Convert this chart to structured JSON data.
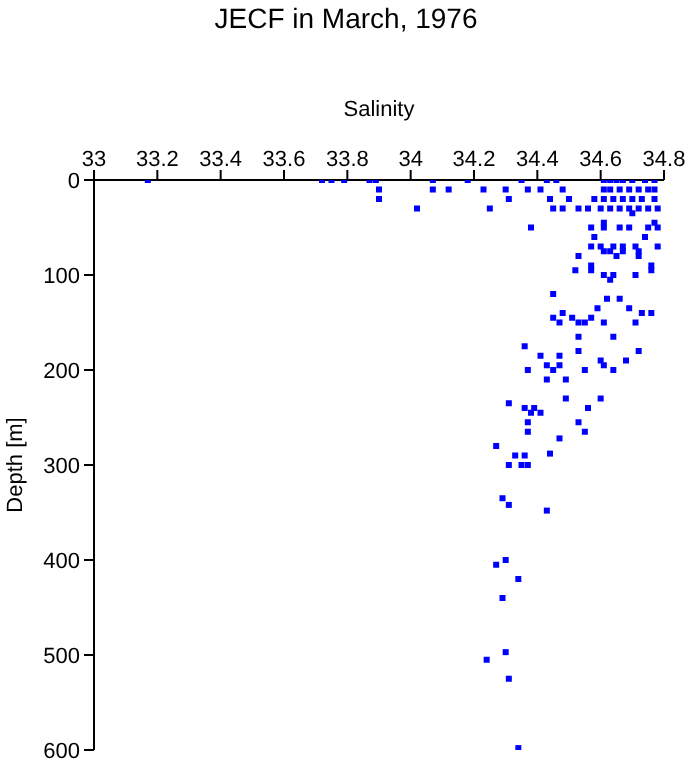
{
  "chart_data": {
    "type": "scatter",
    "title": "JECF in March, 1976",
    "xlabel": "Salinity",
    "ylabel": "Depth [m]",
    "xlim": [
      33,
      34.8
    ],
    "xticks": [
      33,
      33.2,
      33.4,
      33.6,
      33.8,
      34,
      34.2,
      34.4,
      34.6,
      34.8
    ],
    "ylim": [
      600,
      0
    ],
    "yticks": [
      0,
      100,
      200,
      300,
      400,
      500,
      600
    ],
    "grid": false,
    "legend": false,
    "marker": "square",
    "series": [
      {
        "color": "#0000ff",
        "x": [
          33.17,
          33.72,
          33.75,
          33.79,
          33.87,
          33.89,
          34.07,
          34.18,
          34.35,
          34.43,
          34.46,
          34.61,
          34.63,
          34.65,
          34.67,
          34.7,
          34.74,
          34.77,
          33.9,
          34.07,
          34.12,
          34.23,
          34.3,
          34.37,
          34.41,
          34.48,
          34.61,
          34.63,
          34.66,
          34.69,
          34.72,
          34.75,
          34.77,
          33.9,
          34.31,
          34.44,
          34.5,
          34.58,
          34.61,
          34.64,
          34.67,
          34.7,
          34.73,
          34.77,
          34.02,
          34.25,
          34.45,
          34.48,
          34.53,
          34.56,
          34.6,
          34.63,
          34.66,
          34.69,
          34.72,
          34.75,
          34.78,
          34.7,
          34.61,
          34.77,
          34.38,
          34.57,
          34.61,
          34.66,
          34.69,
          34.75,
          34.78,
          34.58,
          34.74,
          34.57,
          34.6,
          34.64,
          34.67,
          34.71,
          34.78,
          34.61,
          34.63,
          34.67,
          34.72,
          34.53,
          34.65,
          34.72,
          34.57,
          34.76,
          34.52,
          34.57,
          34.76,
          34.61,
          34.64,
          34.71,
          34.63,
          34.45,
          34.62,
          34.66,
          34.59,
          34.69,
          34.48,
          34.73,
          34.76,
          34.45,
          34.51,
          34.57,
          34.47,
          34.53,
          34.55,
          34.61,
          34.71,
          34.53,
          34.64,
          34.36,
          34.53,
          34.72,
          34.41,
          34.47,
          34.6,
          34.68,
          34.43,
          34.47,
          34.61,
          34.37,
          34.45,
          34.55,
          34.64,
          34.43,
          34.49,
          34.49,
          34.6,
          34.31,
          34.36,
          34.39,
          34.56,
          34.41,
          34.38,
          34.37,
          34.53,
          34.37,
          34.55,
          34.47,
          34.27,
          34.44,
          34.33,
          34.36,
          34.31,
          34.35,
          34.37,
          34.29,
          34.31,
          34.43,
          34.3,
          34.27,
          34.34,
          34.29,
          34.3,
          34.24,
          34.31,
          34.34
        ],
        "values": [
          0,
          0,
          0,
          0,
          0,
          0,
          0,
          0,
          0,
          0,
          0,
          0,
          0,
          0,
          0,
          0,
          0,
          0,
          10,
          10,
          10,
          10,
          10,
          10,
          10,
          10,
          10,
          10,
          10,
          10,
          10,
          10,
          10,
          20,
          20,
          20,
          20,
          20,
          20,
          20,
          20,
          20,
          20,
          20,
          30,
          30,
          30,
          30,
          30,
          30,
          30,
          30,
          30,
          30,
          30,
          30,
          30,
          35,
          45,
          45,
          50,
          50,
          50,
          50,
          50,
          50,
          50,
          60,
          60,
          70,
          70,
          70,
          70,
          70,
          70,
          75,
          75,
          75,
          75,
          80,
          80,
          80,
          90,
          90,
          95,
          95,
          95,
          100,
          100,
          100,
          105,
          120,
          125,
          125,
          135,
          135,
          140,
          140,
          140,
          145,
          145,
          145,
          150,
          150,
          150,
          150,
          150,
          165,
          165,
          175,
          180,
          180,
          185,
          185,
          190,
          190,
          195,
          195,
          195,
          200,
          200,
          200,
          200,
          210,
          210,
          230,
          230,
          235,
          240,
          240,
          240,
          245,
          245,
          255,
          255,
          265,
          265,
          272,
          280,
          288,
          290,
          290,
          300,
          300,
          300,
          335,
          342,
          348,
          400,
          405,
          420,
          440,
          497,
          505,
          525,
          598
        ]
      }
    ]
  }
}
